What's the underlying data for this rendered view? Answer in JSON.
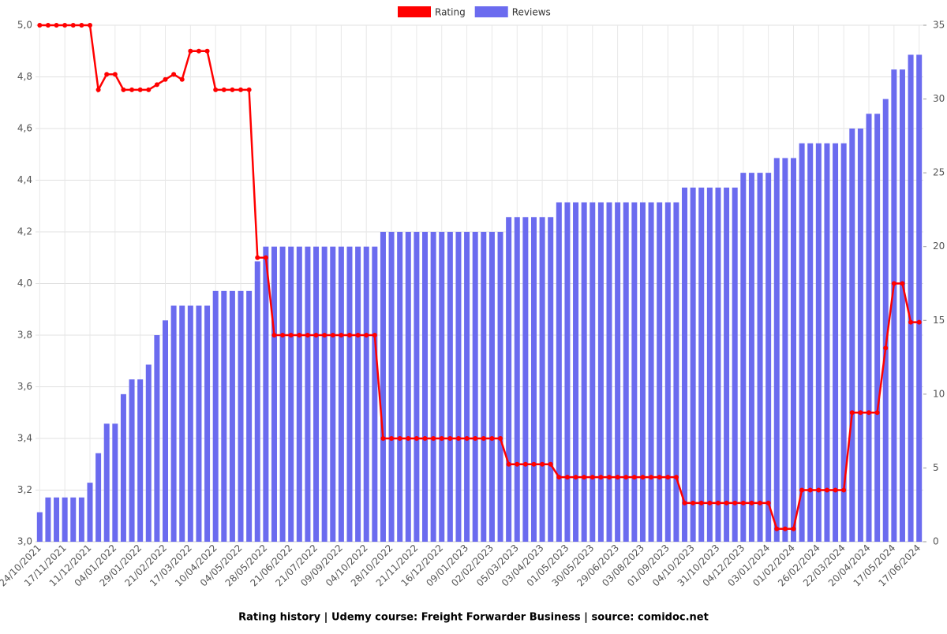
{
  "chart_data": {
    "type": "bar-line",
    "title": "Rating history | Udemy course: Freight Forwarder Business | source: comidoc.net",
    "categories": [
      "24/10/2021",
      null,
      null,
      "17/11/2021",
      null,
      null,
      "11/12/2021",
      null,
      null,
      "04/01/2022",
      null,
      null,
      "29/01/2022",
      null,
      null,
      "21/02/2022",
      null,
      null,
      "17/03/2022",
      null,
      null,
      "10/04/2022",
      null,
      null,
      "04/05/2022",
      null,
      null,
      "28/05/2022",
      null,
      null,
      "21/06/2022",
      null,
      null,
      "21/07/2022",
      null,
      null,
      "09/09/2022",
      null,
      null,
      "04/10/2022",
      null,
      null,
      "28/10/2022",
      null,
      null,
      "21/11/2022",
      null,
      null,
      "16/12/2022",
      null,
      null,
      "09/01/2023",
      null,
      null,
      "02/02/2023",
      null,
      null,
      "05/03/2023",
      null,
      null,
      "03/04/2023",
      null,
      null,
      "01/05/2023",
      null,
      null,
      "30/05/2023",
      null,
      null,
      "29/06/2023",
      null,
      null,
      "03/08/2023",
      null,
      null,
      "01/09/2023",
      null,
      null,
      "04/10/2023",
      null,
      null,
      "31/10/2023",
      null,
      null,
      "04/12/2023",
      null,
      null,
      "03/01/2024",
      null,
      null,
      "01/02/2024",
      null,
      null,
      "26/02/2024",
      null,
      null,
      "22/03/2024",
      null,
      null,
      "20/04/2024",
      null,
      null,
      "17/05/2024",
      null,
      null,
      "17/06/2024"
    ],
    "series": [
      {
        "name": "Rating",
        "color": "#ff0000",
        "type": "line",
        "values": [
          5,
          5,
          5,
          5,
          5,
          5,
          5,
          4.75,
          4.81,
          4.81,
          4.75,
          4.75,
          4.75,
          4.75,
          4.77,
          4.79,
          4.81,
          4.79,
          4.9,
          4.9,
          4.9,
          4.75,
          4.75,
          4.75,
          4.75,
          4.75,
          4.1,
          4.1,
          3.8,
          3.8,
          3.8,
          3.8,
          3.8,
          3.8,
          3.8,
          3.8,
          3.8,
          3.8,
          3.8,
          3.8,
          3.8,
          3.4,
          3.4,
          3.4,
          3.4,
          3.4,
          3.4,
          3.4,
          3.4,
          3.4,
          3.4,
          3.4,
          3.4,
          3.4,
          3.4,
          3.4,
          3.3,
          3.3,
          3.3,
          3.3,
          3.3,
          3.3,
          3.25,
          3.25,
          3.25,
          3.25,
          3.25,
          3.25,
          3.25,
          3.25,
          3.25,
          3.25,
          3.25,
          3.25,
          3.25,
          3.25,
          3.25,
          3.15,
          3.15,
          3.15,
          3.15,
          3.15,
          3.15,
          3.15,
          3.15,
          3.15,
          3.15,
          3.15,
          3.05,
          3.05,
          3.05,
          3.2,
          3.2,
          3.2,
          3.2,
          3.2,
          3.2,
          3.5,
          3.5,
          3.5,
          3.5,
          3.75,
          4,
          4,
          3.85,
          3.85
        ]
      },
      {
        "name": "Reviews",
        "color": "#6b6bef",
        "type": "bar",
        "axis": "y2",
        "values": [
          2,
          3,
          3,
          3,
          3,
          3,
          4,
          6,
          8,
          8,
          10,
          11,
          11,
          12,
          14,
          15,
          16,
          16,
          16,
          16,
          16,
          17,
          17,
          17,
          17,
          17,
          19,
          20,
          20,
          20,
          20,
          20,
          20,
          20,
          20,
          20,
          20,
          20,
          20,
          20,
          20,
          21,
          21,
          21,
          21,
          21,
          21,
          21,
          21,
          21,
          21,
          21,
          21,
          21,
          21,
          21,
          22,
          22,
          22,
          22,
          22,
          22,
          23,
          23,
          23,
          23,
          23,
          23,
          23,
          23,
          23,
          23,
          23,
          23,
          23,
          23,
          23,
          24,
          24,
          24,
          24,
          24,
          24,
          24,
          25,
          25,
          25,
          25,
          26,
          26,
          26,
          27,
          27,
          27,
          27,
          27,
          27,
          28,
          28,
          29,
          29,
          30,
          32,
          32,
          33,
          33
        ]
      }
    ],
    "ylim": [
      3,
      5
    ],
    "yticks": [
      {
        "value": 3,
        "label": "3,0"
      },
      {
        "value": 3.2,
        "label": "3,2"
      },
      {
        "value": 3.4,
        "label": "3,4"
      },
      {
        "value": 3.6,
        "label": "3,6"
      },
      {
        "value": 3.8,
        "label": "3,8"
      },
      {
        "value": 4,
        "label": "4,0"
      },
      {
        "value": 4.2,
        "label": "4,2"
      },
      {
        "value": 4.4,
        "label": "4,4"
      },
      {
        "value": 4.6,
        "label": "4,6"
      },
      {
        "value": 4.8,
        "label": "4,8"
      },
      {
        "value": 5,
        "label": "5,0"
      }
    ],
    "y2lim": [
      0,
      35
    ],
    "y2ticks": [
      0,
      5,
      10,
      15,
      20,
      25,
      30,
      35
    ],
    "grid": true,
    "legend": "top"
  }
}
